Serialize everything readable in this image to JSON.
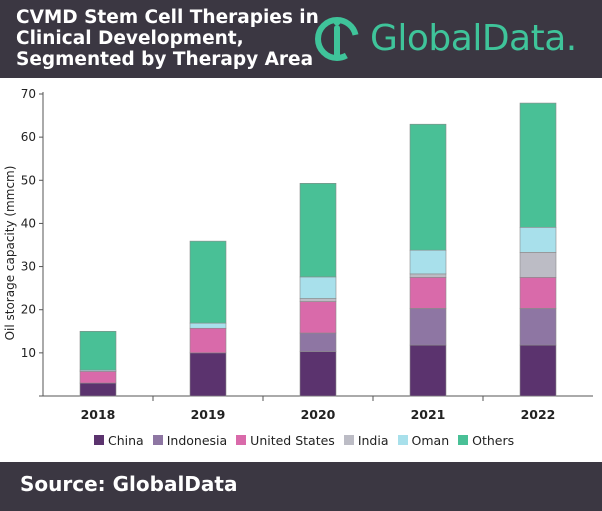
{
  "header": {
    "title_lines": [
      "CVMD Stem Cell Therapies in",
      "Clinical Development,",
      "Segmented by Therapy Area"
    ],
    "logo_text": "GlobalData.",
    "brand_color": "#3fc49a",
    "background_color": "#3b3742"
  },
  "footer": {
    "source": "Source: GlobalData"
  },
  "chart_data": {
    "type": "bar",
    "stacked": true,
    "title": "CVMD Stem Cell Therapies in Clinical Development, Segmented by Therapy Area",
    "ylabel": "Oil storage capacity (mmcm)",
    "xlabel": "",
    "ylim": [
      0,
      70
    ],
    "yticks": [
      10,
      20,
      30,
      40,
      50,
      60,
      70
    ],
    "grid": false,
    "legend_position": "bottom",
    "categories": [
      "2018",
      "2019",
      "2020",
      "2021",
      "2022"
    ],
    "series": [
      {
        "name": "China",
        "color": "#5b336e",
        "values": [
          3,
          10,
          10.3,
          11.8,
          11.8
        ]
      },
      {
        "name": "Indonesia",
        "color": "#8e76a3",
        "values": [
          0,
          0,
          4.3,
          8.5,
          8.5
        ]
      },
      {
        "name": "United States",
        "color": "#d96aaa",
        "values": [
          2.7,
          5.7,
          7.3,
          7.2,
          7.2
        ]
      },
      {
        "name": "India",
        "color": "#bcbcc5",
        "values": [
          0,
          0,
          0.7,
          0.8,
          5.8
        ]
      },
      {
        "name": "Oman",
        "color": "#a8e0eb",
        "values": [
          0.3,
          1.2,
          5,
          5.5,
          5.8
        ]
      },
      {
        "name": "Others",
        "color": "#49c096",
        "values": [
          9,
          19,
          21.7,
          29.2,
          28.8
        ]
      }
    ]
  }
}
